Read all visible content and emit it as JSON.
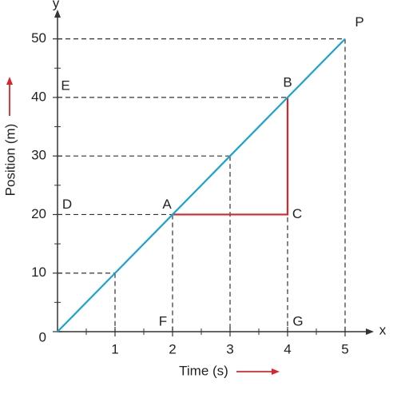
{
  "chart_data": {
    "type": "line",
    "xlabel": "Time (s)",
    "ylabel": "Position (m)",
    "x_axis_name": "x",
    "y_axis_name": "y",
    "series": [
      {
        "color": "#1aa3d2",
        "x": [
          0,
          1,
          2,
          3,
          4,
          5
        ],
        "values": [
          0,
          10,
          20,
          30,
          40,
          50
        ]
      }
    ],
    "xlim": [
      0,
      5.5
    ],
    "ylim": [
      0,
      55
    ],
    "xticks": [
      1,
      2,
      3,
      4,
      5
    ],
    "yticks": [
      0,
      10,
      20,
      30,
      40,
      50
    ],
    "xminorticks": [
      0.5,
      1.5,
      2.5,
      3.5,
      4.5
    ],
    "yminorticks": [
      5,
      15,
      25,
      35,
      45
    ],
    "points": [
      {
        "label": "A",
        "x": 2,
        "y": 20
      },
      {
        "label": "B",
        "x": 4,
        "y": 40
      },
      {
        "label": "C",
        "x": 4,
        "y": 20
      },
      {
        "label": "D",
        "x": 0,
        "y": 20
      },
      {
        "label": "E",
        "x": 0,
        "y": 40
      },
      {
        "label": "F",
        "x": 2,
        "y": 0
      },
      {
        "label": "G",
        "x": 4,
        "y": 0
      },
      {
        "label": "P",
        "x": 5,
        "y": 50
      }
    ],
    "triangle_color": "#d9262b",
    "arrow_color": "#d9262b"
  }
}
